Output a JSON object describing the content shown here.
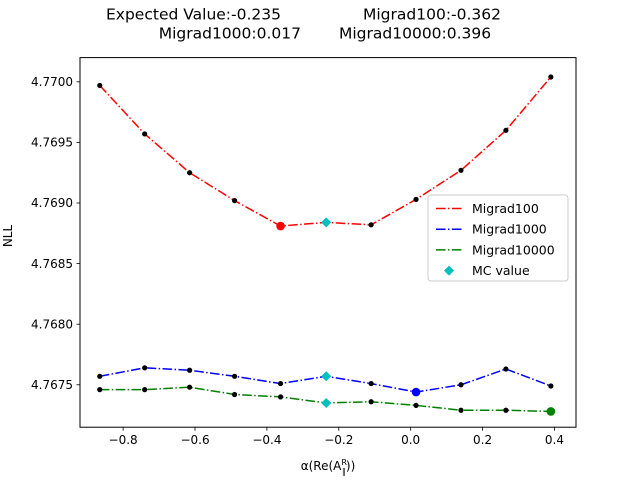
{
  "chart_data": {
    "type": "line",
    "title_lines": [
      [
        "Expected Value:-0.235",
        "Migrad100:-0.362"
      ],
      [
        "Migrad1000:0.017",
        "Migrad10000:0.396"
      ]
    ],
    "xlabel_prefix": "α(Re(A",
    "xlabel_super": "R",
    "xlabel_sub": "∥",
    "xlabel_suffix": "))",
    "ylabel": "NLL",
    "xlim": [
      -0.92,
      0.46
    ],
    "ylim": [
      4.76715,
      4.7702
    ],
    "xticks": [
      -0.8,
      -0.6,
      -0.4,
      -0.2,
      0.0,
      0.2,
      0.4
    ],
    "xtick_labels": [
      "−0.8",
      "−0.6",
      "−0.4",
      "−0.2",
      "0.0",
      "0.2",
      "0.4"
    ],
    "yticks": [
      4.7675,
      4.768,
      4.7685,
      4.769,
      4.7695,
      4.77
    ],
    "ytick_labels": [
      "4.7675",
      "4.7680",
      "4.7685",
      "4.7690",
      "4.7695",
      "4.7700"
    ],
    "legend_position": "center-right",
    "series": [
      {
        "name": "Migrad100",
        "color": "#ff0000",
        "style": "dash-dot",
        "x": [
          -0.865,
          -0.74,
          -0.615,
          -0.49,
          -0.362,
          -0.235,
          -0.11,
          0.015,
          0.14,
          0.265,
          0.39
        ],
        "y": [
          4.76997,
          4.76957,
          4.76925,
          4.76902,
          4.76881,
          4.76884,
          4.76882,
          4.76903,
          4.76927,
          4.7696,
          4.77004
        ],
        "min_x": -0.362,
        "min_y": 4.76881
      },
      {
        "name": "Migrad1000",
        "color": "#0000ff",
        "style": "dash-dot",
        "x": [
          -0.865,
          -0.74,
          -0.615,
          -0.49,
          -0.362,
          -0.235,
          -0.11,
          0.015,
          0.14,
          0.265,
          0.39
        ],
        "y": [
          4.76757,
          4.76764,
          4.76762,
          4.76757,
          4.76751,
          4.76757,
          4.76751,
          4.76744,
          4.7675,
          4.76763,
          4.76749
        ],
        "min_x": 0.015,
        "min_y": 4.76744
      },
      {
        "name": "Migrad10000",
        "color": "#008000",
        "style": "dash-dot",
        "x": [
          -0.865,
          -0.74,
          -0.615,
          -0.49,
          -0.362,
          -0.235,
          -0.11,
          0.015,
          0.14,
          0.265,
          0.39
        ],
        "y": [
          4.76746,
          4.76746,
          4.76748,
          4.76742,
          4.7674,
          4.76735,
          4.76736,
          4.76733,
          4.76729,
          4.76729,
          4.76728
        ],
        "min_x": 0.39,
        "min_y": 4.76728
      }
    ],
    "mc_points": {
      "name": "MC value",
      "color": "#00bfbf",
      "marker": "diamond",
      "x": [
        -0.235,
        -0.235,
        -0.235
      ],
      "y": [
        4.76884,
        4.76757,
        4.76735
      ]
    }
  }
}
